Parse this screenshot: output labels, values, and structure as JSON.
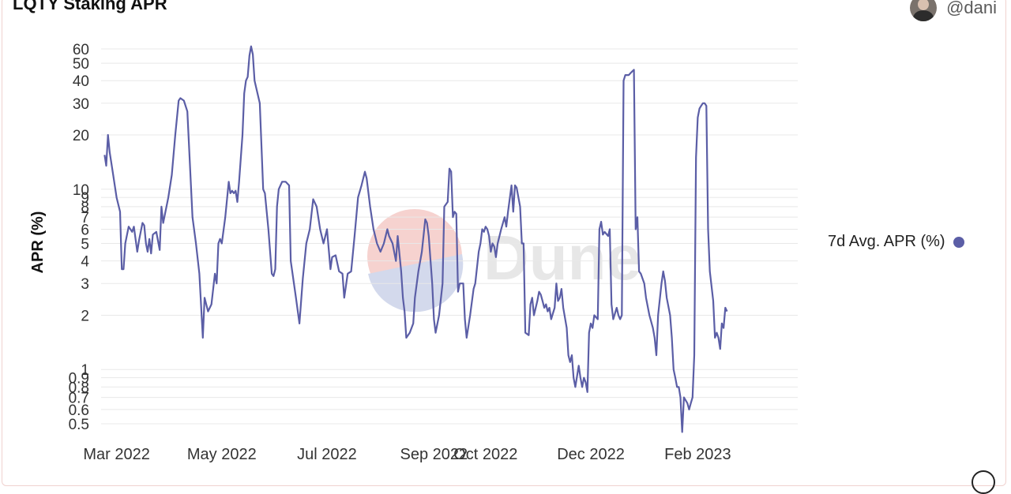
{
  "header": {
    "title": "LQTY Staking APR",
    "username": "@dani"
  },
  "watermark": "Dune",
  "colors": {
    "series": "#5b5ea6",
    "grid": "#e8e8e8",
    "axis_text": "#333333"
  },
  "icons": {
    "avatar": "user-avatar",
    "check": "check-circle-icon"
  },
  "chart_data": {
    "type": "line",
    "ylabel": "APR (%)",
    "xlabel": "",
    "yscale": "log",
    "ylim": [
      0.45,
      65
    ],
    "yticks": [
      0.5,
      0.6,
      0.7,
      0.8,
      0.9,
      1,
      2,
      3,
      4,
      5,
      6,
      7,
      8,
      9,
      10,
      20,
      30,
      40,
      50,
      60
    ],
    "xlim": [
      "2022-02-20",
      "2023-03-31"
    ],
    "xticks": [
      {
        "date": "2022-03-01",
        "label": "Mar 2022"
      },
      {
        "date": "2022-05-01",
        "label": "May 2022"
      },
      {
        "date": "2022-07-01",
        "label": "Jul 2022"
      },
      {
        "date": "2022-09-01",
        "label": "Sep 2022"
      },
      {
        "date": "2022-10-01",
        "label": "Oct 2022"
      },
      {
        "date": "2022-12-01",
        "label": "Dec 2022"
      },
      {
        "date": "2023-02-01",
        "label": "Feb 2023"
      }
    ],
    "grid": true,
    "legend_position": "right",
    "series": [
      {
        "name": "7d Avg. APR (%)",
        "color": "#5b5ea6",
        "points": [
          [
            "2022-02-22",
            15.5
          ],
          [
            "2022-02-23",
            13.5
          ],
          [
            "2022-02-24",
            20
          ],
          [
            "2022-02-25",
            16
          ],
          [
            "2022-02-27",
            12
          ],
          [
            "2022-03-01",
            9
          ],
          [
            "2022-03-03",
            7.5
          ],
          [
            "2022-03-04",
            3.6
          ],
          [
            "2022-03-05",
            3.6
          ],
          [
            "2022-03-06",
            5
          ],
          [
            "2022-03-08",
            6.2
          ],
          [
            "2022-03-10",
            5.8
          ],
          [
            "2022-03-11",
            6.2
          ],
          [
            "2022-03-13",
            4.5
          ],
          [
            "2022-03-14",
            5.2
          ],
          [
            "2022-03-16",
            6.5
          ],
          [
            "2022-03-17",
            6.3
          ],
          [
            "2022-03-18",
            5
          ],
          [
            "2022-03-19",
            4.5
          ],
          [
            "2022-03-20",
            5.3
          ],
          [
            "2022-03-21",
            4.4
          ],
          [
            "2022-03-22",
            5.6
          ],
          [
            "2022-03-24",
            5.8
          ],
          [
            "2022-03-26",
            4.6
          ],
          [
            "2022-03-27",
            8
          ],
          [
            "2022-03-28",
            6.5
          ],
          [
            "2022-03-31",
            9
          ],
          [
            "2022-04-02",
            12
          ],
          [
            "2022-04-04",
            20
          ],
          [
            "2022-04-06",
            31
          ],
          [
            "2022-04-07",
            32
          ],
          [
            "2022-04-09",
            31
          ],
          [
            "2022-04-11",
            27
          ],
          [
            "2022-04-14",
            7
          ],
          [
            "2022-04-16",
            5
          ],
          [
            "2022-04-18",
            3.4
          ],
          [
            "2022-04-20",
            1.5
          ],
          [
            "2022-04-21",
            2.5
          ],
          [
            "2022-04-23",
            2.1
          ],
          [
            "2022-04-25",
            2.3
          ],
          [
            "2022-04-27",
            3.4
          ],
          [
            "2022-04-28",
            3
          ],
          [
            "2022-04-29",
            5
          ],
          [
            "2022-04-30",
            5.3
          ],
          [
            "2022-05-01",
            5
          ],
          [
            "2022-05-03",
            7
          ],
          [
            "2022-05-05",
            11
          ],
          [
            "2022-05-06",
            9.5
          ],
          [
            "2022-05-07",
            9.8
          ],
          [
            "2022-05-08",
            9.5
          ],
          [
            "2022-05-09",
            9.8
          ],
          [
            "2022-05-10",
            8.5
          ],
          [
            "2022-05-11",
            11
          ],
          [
            "2022-05-13",
            20
          ],
          [
            "2022-05-14",
            34
          ],
          [
            "2022-05-15",
            40
          ],
          [
            "2022-05-16",
            42
          ],
          [
            "2022-05-17",
            55
          ],
          [
            "2022-05-18",
            62
          ],
          [
            "2022-05-19",
            56
          ],
          [
            "2022-05-20",
            40
          ],
          [
            "2022-05-22",
            33
          ],
          [
            "2022-05-23",
            30
          ],
          [
            "2022-05-25",
            10
          ],
          [
            "2022-05-26",
            9.5
          ],
          [
            "2022-05-28",
            6
          ],
          [
            "2022-05-30",
            3.4
          ],
          [
            "2022-05-31",
            3.3
          ],
          [
            "2022-06-01",
            3.6
          ],
          [
            "2022-06-02",
            8
          ],
          [
            "2022-06-03",
            10
          ],
          [
            "2022-06-05",
            11
          ],
          [
            "2022-06-07",
            11
          ],
          [
            "2022-06-09",
            10.5
          ],
          [
            "2022-06-10",
            4
          ],
          [
            "2022-06-13",
            2.5
          ],
          [
            "2022-06-15",
            1.8
          ],
          [
            "2022-06-17",
            3.2
          ],
          [
            "2022-06-19",
            5
          ],
          [
            "2022-06-21",
            6
          ],
          [
            "2022-06-23",
            8.8
          ],
          [
            "2022-06-25",
            8
          ],
          [
            "2022-06-27",
            6
          ],
          [
            "2022-06-29",
            5
          ],
          [
            "2022-07-01",
            6
          ],
          [
            "2022-07-03",
            3.6
          ],
          [
            "2022-07-04",
            4.2
          ],
          [
            "2022-07-06",
            4.3
          ],
          [
            "2022-07-08",
            3.5
          ],
          [
            "2022-07-10",
            3.4
          ],
          [
            "2022-07-11",
            2.5
          ],
          [
            "2022-07-13",
            3.4
          ],
          [
            "2022-07-15",
            3.5
          ],
          [
            "2022-07-17",
            5.5
          ],
          [
            "2022-07-19",
            9
          ],
          [
            "2022-07-21",
            10.5
          ],
          [
            "2022-07-23",
            12.5
          ],
          [
            "2022-07-24",
            11.5
          ],
          [
            "2022-07-26",
            8
          ],
          [
            "2022-07-28",
            6
          ],
          [
            "2022-07-30",
            5
          ],
          [
            "2022-08-01",
            4.5
          ],
          [
            "2022-08-03",
            5
          ],
          [
            "2022-08-05",
            6
          ],
          [
            "2022-08-06",
            5.5
          ],
          [
            "2022-08-08",
            5
          ],
          [
            "2022-08-10",
            4
          ],
          [
            "2022-08-11",
            5.5
          ],
          [
            "2022-08-13",
            3.5
          ],
          [
            "2022-08-14",
            2.5
          ],
          [
            "2022-08-15",
            2.1
          ],
          [
            "2022-08-16",
            1.5
          ],
          [
            "2022-08-18",
            1.6
          ],
          [
            "2022-08-20",
            1.8
          ],
          [
            "2022-08-21",
            2.5
          ],
          [
            "2022-08-23",
            3.5
          ],
          [
            "2022-08-25",
            4.5
          ],
          [
            "2022-08-27",
            6.8
          ],
          [
            "2022-08-28",
            6.5
          ],
          [
            "2022-08-29",
            5.5
          ],
          [
            "2022-08-31",
            3
          ],
          [
            "2022-09-01",
            1.9
          ],
          [
            "2022-09-02",
            1.6
          ],
          [
            "2022-09-04",
            2
          ],
          [
            "2022-09-06",
            3
          ],
          [
            "2022-09-07",
            8
          ],
          [
            "2022-09-09",
            8.5
          ],
          [
            "2022-09-10",
            13
          ],
          [
            "2022-09-11",
            12.5
          ],
          [
            "2022-09-12",
            7
          ],
          [
            "2022-09-13",
            7.5
          ],
          [
            "2022-09-14",
            7.3
          ],
          [
            "2022-09-15",
            2.7
          ],
          [
            "2022-09-16",
            3
          ],
          [
            "2022-09-18",
            3
          ],
          [
            "2022-09-19",
            1.9
          ],
          [
            "2022-09-20",
            1.5
          ],
          [
            "2022-09-22",
            2
          ],
          [
            "2022-09-24",
            2.8
          ],
          [
            "2022-09-25",
            3
          ],
          [
            "2022-09-27",
            4.5
          ],
          [
            "2022-09-28",
            5
          ],
          [
            "2022-09-29",
            6
          ],
          [
            "2022-09-30",
            5.8
          ],
          [
            "2022-10-01",
            6.2
          ],
          [
            "2022-10-02",
            6
          ],
          [
            "2022-10-03",
            5.5
          ],
          [
            "2022-10-04",
            4.5
          ],
          [
            "2022-10-05",
            5
          ],
          [
            "2022-10-06",
            4.8
          ],
          [
            "2022-10-07",
            4.2
          ],
          [
            "2022-10-08",
            5
          ],
          [
            "2022-10-10",
            6
          ],
          [
            "2022-10-12",
            7
          ],
          [
            "2022-10-13",
            6.2
          ],
          [
            "2022-10-14",
            7.5
          ],
          [
            "2022-10-16",
            10.5
          ],
          [
            "2022-10-17",
            7.5
          ],
          [
            "2022-10-18",
            10.5
          ],
          [
            "2022-10-19",
            10.2
          ],
          [
            "2022-10-21",
            8
          ],
          [
            "2022-10-22",
            5
          ],
          [
            "2022-10-23",
            5
          ],
          [
            "2022-10-24",
            1.6
          ],
          [
            "2022-10-26",
            1.55
          ],
          [
            "2022-10-27",
            2.3
          ],
          [
            "2022-10-28",
            2.5
          ],
          [
            "2022-10-29",
            2
          ],
          [
            "2022-10-31",
            2.4
          ],
          [
            "2022-11-01",
            2.7
          ],
          [
            "2022-11-02",
            2.6
          ],
          [
            "2022-11-03",
            2.4
          ],
          [
            "2022-11-04",
            2.2
          ],
          [
            "2022-11-05",
            2.3
          ],
          [
            "2022-11-06",
            2.1
          ],
          [
            "2022-11-07",
            2.2
          ],
          [
            "2022-11-08",
            1.9
          ],
          [
            "2022-11-10",
            2.2
          ],
          [
            "2022-11-11",
            3
          ],
          [
            "2022-11-12",
            2.4
          ],
          [
            "2022-11-13",
            2.5
          ],
          [
            "2022-11-14",
            2.8
          ],
          [
            "2022-11-15",
            2.2
          ],
          [
            "2022-11-17",
            1.7
          ],
          [
            "2022-11-18",
            1.2
          ],
          [
            "2022-11-19",
            1.1
          ],
          [
            "2022-11-20",
            1.2
          ],
          [
            "2022-11-21",
            0.9
          ],
          [
            "2022-11-22",
            0.8
          ],
          [
            "2022-11-24",
            1.05
          ],
          [
            "2022-11-25",
            0.9
          ],
          [
            "2022-11-26",
            0.8
          ],
          [
            "2022-11-27",
            0.9
          ],
          [
            "2022-11-28",
            0.85
          ],
          [
            "2022-11-29",
            0.75
          ],
          [
            "2022-11-30",
            1.6
          ],
          [
            "2022-12-01",
            1.8
          ],
          [
            "2022-12-02",
            1.7
          ],
          [
            "2022-12-03",
            2
          ],
          [
            "2022-12-05",
            1.9
          ],
          [
            "2022-12-06",
            6
          ],
          [
            "2022-12-07",
            6.6
          ],
          [
            "2022-12-08",
            5.6
          ],
          [
            "2022-12-09",
            5.8
          ],
          [
            "2022-12-11",
            5.5
          ],
          [
            "2022-12-12",
            6
          ],
          [
            "2022-12-13",
            2.3
          ],
          [
            "2022-12-14",
            1.9
          ],
          [
            "2022-12-16",
            2.2
          ],
          [
            "2022-12-17",
            2
          ],
          [
            "2022-12-18",
            1.9
          ],
          [
            "2022-12-19",
            2
          ],
          [
            "2022-12-20",
            40
          ],
          [
            "2022-12-21",
            43
          ],
          [
            "2022-12-23",
            43
          ],
          [
            "2022-12-24",
            44
          ],
          [
            "2022-12-25",
            45
          ],
          [
            "2022-12-26",
            46
          ],
          [
            "2022-12-27",
            6
          ],
          [
            "2022-12-28",
            7
          ],
          [
            "2022-12-29",
            3.5
          ],
          [
            "2022-12-30",
            3.4
          ],
          [
            "2023-01-01",
            3
          ],
          [
            "2023-01-02",
            2.5
          ],
          [
            "2023-01-04",
            2
          ],
          [
            "2023-01-06",
            1.7
          ],
          [
            "2023-01-07",
            1.5
          ],
          [
            "2023-01-08",
            1.2
          ],
          [
            "2023-01-09",
            2
          ],
          [
            "2023-01-11",
            3
          ],
          [
            "2023-01-12",
            3.5
          ],
          [
            "2023-01-13",
            3.1
          ],
          [
            "2023-01-14",
            2.5
          ],
          [
            "2023-01-16",
            2
          ],
          [
            "2023-01-17",
            1.5
          ],
          [
            "2023-01-18",
            1
          ],
          [
            "2023-01-19",
            0.9
          ],
          [
            "2023-01-20",
            0.8
          ],
          [
            "2023-01-21",
            0.8
          ],
          [
            "2023-01-22",
            0.7
          ],
          [
            "2023-01-23",
            0.45
          ],
          [
            "2023-01-24",
            0.7
          ],
          [
            "2023-01-26",
            0.65
          ],
          [
            "2023-01-27",
            0.6
          ],
          [
            "2023-01-28",
            0.65
          ],
          [
            "2023-01-29",
            0.7
          ],
          [
            "2023-01-30",
            1.2
          ],
          [
            "2023-01-31",
            15
          ],
          [
            "2023-02-01",
            25
          ],
          [
            "2023-02-02",
            28
          ],
          [
            "2023-02-03",
            29
          ],
          [
            "2023-02-04",
            30
          ],
          [
            "2023-02-05",
            30
          ],
          [
            "2023-02-06",
            29
          ],
          [
            "2023-02-07",
            6
          ],
          [
            "2023-02-08",
            3.5
          ],
          [
            "2023-02-10",
            2.4
          ],
          [
            "2023-02-11",
            1.5
          ],
          [
            "2023-02-12",
            1.6
          ],
          [
            "2023-02-13",
            1.5
          ],
          [
            "2023-02-14",
            1.3
          ],
          [
            "2023-02-15",
            1.8
          ],
          [
            "2023-02-16",
            1.7
          ],
          [
            "2023-02-17",
            2.2
          ],
          [
            "2023-02-18",
            2.1
          ]
        ]
      }
    ]
  }
}
